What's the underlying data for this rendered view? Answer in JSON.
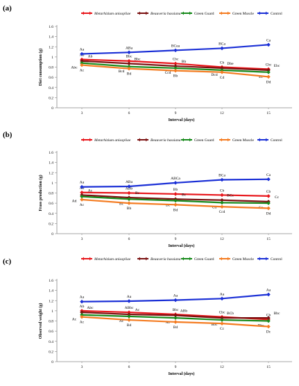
{
  "legend": [
    {
      "name": "Metarhizium anisopliae",
      "italic": true,
      "color": "#e8161b"
    },
    {
      "name": "Beauveria bassiana",
      "italic": true,
      "color": "#7a1010"
    },
    {
      "name": "Green Guard",
      "italic": false,
      "color": "#178a1b"
    },
    {
      "name": "Green Muscle",
      "italic": false,
      "color": "#f47b20"
    },
    {
      "name": "Control",
      "italic": false,
      "color": "#1a2fd6"
    }
  ],
  "chart_data": [
    {
      "type": "line",
      "panel": "(a)",
      "xlabel": "Interval (days)",
      "ylabel": "Diet consumption (g)",
      "x": [
        3,
        6,
        9,
        12,
        15
      ],
      "xticks": [
        "3",
        "6",
        "9",
        "12",
        "15"
      ],
      "ylim": [
        0,
        1.6
      ],
      "yticks": [
        "0",
        "0.2",
        "0.4",
        "0.6",
        "0.8",
        "1",
        "1.2",
        "1.4",
        "1.6"
      ],
      "series": [
        {
          "name": "Metarhizium anisopliae",
          "values": [
            0.95,
            0.92,
            0.87,
            0.8,
            0.76
          ],
          "letters": [
            "Ab",
            "Bbc",
            "Cbc",
            "Cb",
            "Cbc"
          ]
        },
        {
          "name": "Beauveria bassiana",
          "values": [
            0.92,
            0.87,
            0.82,
            0.78,
            0.74
          ],
          "letters": [
            "Ab",
            "Bbc",
            "Bb",
            "Dbe",
            "Ebc"
          ]
        },
        {
          "name": "Green Guard",
          "values": [
            0.88,
            0.81,
            0.78,
            0.74,
            0.7
          ],
          "letters": [
            "Abc",
            "Bcd",
            "Ccd",
            "Dcd",
            "Ec"
          ]
        },
        {
          "name": "Green Muscle",
          "values": [
            0.84,
            0.77,
            0.73,
            0.7,
            0.61
          ],
          "letters": [
            "Ac",
            "Bd",
            "Bb",
            "Cd",
            "Dd"
          ]
        },
        {
          "name": "Control",
          "values": [
            1.06,
            1.09,
            1.13,
            1.17,
            1.24
          ],
          "letters": [
            "Aa",
            "ABa",
            "BCea",
            "BCa",
            "Ca"
          ]
        }
      ]
    },
    {
      "type": "line",
      "panel": "(b)",
      "xlabel": "Interval (days)",
      "ylabel": "Frass production (g)",
      "x": [
        3,
        6,
        9,
        12,
        15
      ],
      "xticks": [
        "3",
        "6",
        "9",
        "12",
        "15"
      ],
      "ylim": [
        0,
        1.6
      ],
      "yticks": [
        "0",
        "0.2",
        "0.4",
        "0.6",
        "0.8",
        "1",
        "1.2",
        "1.4",
        "1.6"
      ],
      "series": [
        {
          "name": "Metarhizium anisopliae",
          "values": [
            0.81,
            0.8,
            0.78,
            0.76,
            0.74
          ],
          "letters": [
            "Ab",
            "ABb",
            "Bb",
            "Cb",
            "Cb"
          ]
        },
        {
          "name": "Beauveria bassiana",
          "values": [
            0.76,
            0.71,
            0.68,
            0.66,
            0.63
          ],
          "letters": [
            "Ac",
            "Bc",
            "Bc",
            "BCc",
            "Cc"
          ]
        },
        {
          "name": "Green Guard",
          "values": [
            0.73,
            0.68,
            0.65,
            0.61,
            0.6
          ],
          "letters": [
            "Ad",
            "Bc",
            "Bc",
            "Cd",
            "Cc"
          ]
        },
        {
          "name": "Green Muscle",
          "values": [
            0.67,
            0.6,
            0.57,
            0.53,
            0.5
          ],
          "letters": [
            "Ac",
            "Bb",
            "Bd",
            "Ccd",
            "Dd"
          ]
        },
        {
          "name": "Control",
          "values": [
            0.92,
            0.93,
            1.0,
            1.06,
            1.07
          ],
          "letters": [
            "Aa",
            "ABa",
            "ABCa",
            "BCa",
            "Ca"
          ]
        }
      ]
    },
    {
      "type": "line",
      "panel": "(c)",
      "xlabel": "Interval (days)",
      "ylabel": "Observed weight (g)",
      "x": [
        3,
        6,
        9,
        12,
        15
      ],
      "xticks": [
        "3",
        "6",
        "9",
        "12",
        "15"
      ],
      "ylim": [
        0,
        1.6
      ],
      "yticks": [
        "0",
        "0.2",
        "0.4",
        "0.6",
        "0.8",
        "1",
        "1.2",
        "1.4",
        "1.6"
      ],
      "series": [
        {
          "name": "Metarhizium anisopliae",
          "values": [
            1.0,
            0.97,
            0.93,
            0.88,
            0.83
          ],
          "letters": [
            "Ab",
            "ABbc",
            "Bbc",
            "Cbc",
            "Cb"
          ]
        },
        {
          "name": "Beauveria bassiana",
          "values": [
            0.97,
            0.93,
            0.91,
            0.86,
            0.86
          ],
          "letters": [
            "Abc",
            "Ac",
            "ABb",
            "BCb",
            "Bbc"
          ]
        },
        {
          "name": "Green Guard",
          "values": [
            0.92,
            0.89,
            0.86,
            0.82,
            0.8
          ],
          "letters": [
            "Ac",
            "Ac",
            "Ac",
            "Bbc",
            "Dbc"
          ]
        },
        {
          "name": "Green Muscle",
          "values": [
            0.88,
            0.82,
            0.78,
            0.75,
            0.69
          ],
          "letters": [
            "Ac",
            "Bd",
            "Bd",
            "Cc",
            "Dc"
          ]
        },
        {
          "name": "Control",
          "values": [
            1.18,
            1.19,
            1.21,
            1.24,
            1.32
          ],
          "letters": [
            "Aa",
            "Aa",
            "Aa",
            "Aa",
            "Aa"
          ]
        }
      ]
    }
  ]
}
